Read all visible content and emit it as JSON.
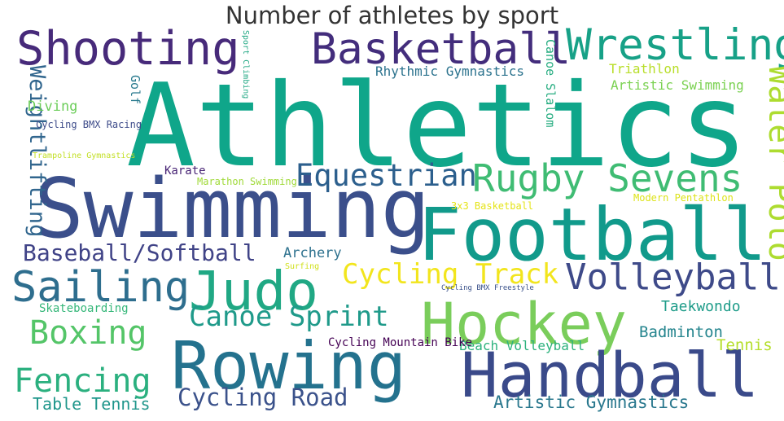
{
  "chart_data": {
    "type": "wordcloud",
    "title": "Number of athletes by sport",
    "words": [
      {
        "text": "Athletics",
        "weight": 100,
        "color": "#0fa68a"
      },
      {
        "text": "Swimming",
        "weight": 72,
        "color": "#3b4f8b"
      },
      {
        "text": "Football",
        "weight": 68,
        "color": "#119a8b"
      },
      {
        "text": "Hockey",
        "weight": 52,
        "color": "#7acd5b"
      },
      {
        "text": "Rowing",
        "weight": 58,
        "color": "#24728e"
      },
      {
        "text": "Handball",
        "weight": 58,
        "color": "#3a4a8a"
      },
      {
        "text": "Judo",
        "weight": 48,
        "color": "#20a884"
      },
      {
        "text": "Shooting",
        "weight": 44,
        "color": "#472a7a"
      },
      {
        "text": "Basketball",
        "weight": 40,
        "color": "#432d7c"
      },
      {
        "text": "Wrestling",
        "weight": 40,
        "color": "#17a187"
      },
      {
        "text": "Sailing",
        "weight": 40,
        "color": "#2e6e8e"
      },
      {
        "text": "Rugby Sevens",
        "weight": 36,
        "color": "#3fbc73"
      },
      {
        "text": "Volleyball",
        "weight": 34,
        "color": "#3e4a89"
      },
      {
        "text": "Fencing",
        "weight": 32,
        "color": "#2bb07f"
      },
      {
        "text": "Boxing",
        "weight": 32,
        "color": "#54c568"
      },
      {
        "text": "Equestrian",
        "weight": 30,
        "color": "#2c5f8d"
      },
      {
        "text": "Water Polo",
        "weight": 30,
        "color": "#addc30"
      },
      {
        "text": "Canoe Sprint",
        "weight": 26,
        "color": "#1f9a8a"
      },
      {
        "text": "Cycling Track",
        "weight": 26,
        "color": "#f2e51d"
      },
      {
        "text": "Weightlifting",
        "weight": 24,
        "color": "#31668e"
      },
      {
        "text": "Cycling Road",
        "weight": 23,
        "color": "#3b528b"
      },
      {
        "text": "Baseball/Softball",
        "weight": 22,
        "color": "#404387"
      },
      {
        "text": "Artistic Gymnastics",
        "weight": 18,
        "color": "#2a788e"
      },
      {
        "text": "Table Tennis",
        "weight": 16,
        "color": "#1f968b"
      },
      {
        "text": "Badminton",
        "weight": 15,
        "color": "#25858e"
      },
      {
        "text": "Tennis",
        "weight": 15,
        "color": "#b5de2b"
      },
      {
        "text": "Taekwondo",
        "weight": 14,
        "color": "#1e9c89"
      },
      {
        "text": "Archery",
        "weight": 14,
        "color": "#2d718e"
      },
      {
        "text": "Rhythmic Gymnastics",
        "weight": 13,
        "color": "#2c738e"
      },
      {
        "text": "Artistic Swimming",
        "weight": 13,
        "color": "#7ad151"
      },
      {
        "text": "Triathlon",
        "weight": 13,
        "color": "#b8de29"
      },
      {
        "text": "Beach Volleyball",
        "weight": 12,
        "color": "#2db27d"
      },
      {
        "text": "Diving",
        "weight": 13,
        "color": "#6ccd5a"
      },
      {
        "text": "Cycling Mountain Bike",
        "weight": 11,
        "color": "#440154"
      },
      {
        "text": "Canoe Slalom",
        "weight": 11,
        "color": "#27ad81"
      },
      {
        "text": "Golf",
        "weight": 11,
        "color": "#297a8e"
      },
      {
        "text": "Karate",
        "weight": 11,
        "color": "#482475"
      },
      {
        "text": "Skateboarding",
        "weight": 10,
        "color": "#35b779"
      },
      {
        "text": "Modern Pentathlon",
        "weight": 9,
        "color": "#dde318"
      },
      {
        "text": "3x3 Basketball",
        "weight": 9,
        "color": "#e5e419"
      },
      {
        "text": "Cycling BMX Racing",
        "weight": 9,
        "color": "#3e4c8a"
      },
      {
        "text": "Marathon Swimming",
        "weight": 9,
        "color": "#a0da39"
      },
      {
        "text": "Sport Climbing",
        "weight": 7,
        "color": "#22a884"
      },
      {
        "text": "Trampoline Gymnastics",
        "weight": 7,
        "color": "#c2df23"
      },
      {
        "text": "Surfing",
        "weight": 7,
        "color": "#d0e11c"
      },
      {
        "text": "Cycling BMX Freestyle",
        "weight": 6,
        "color": "#3b528b"
      }
    ]
  }
}
